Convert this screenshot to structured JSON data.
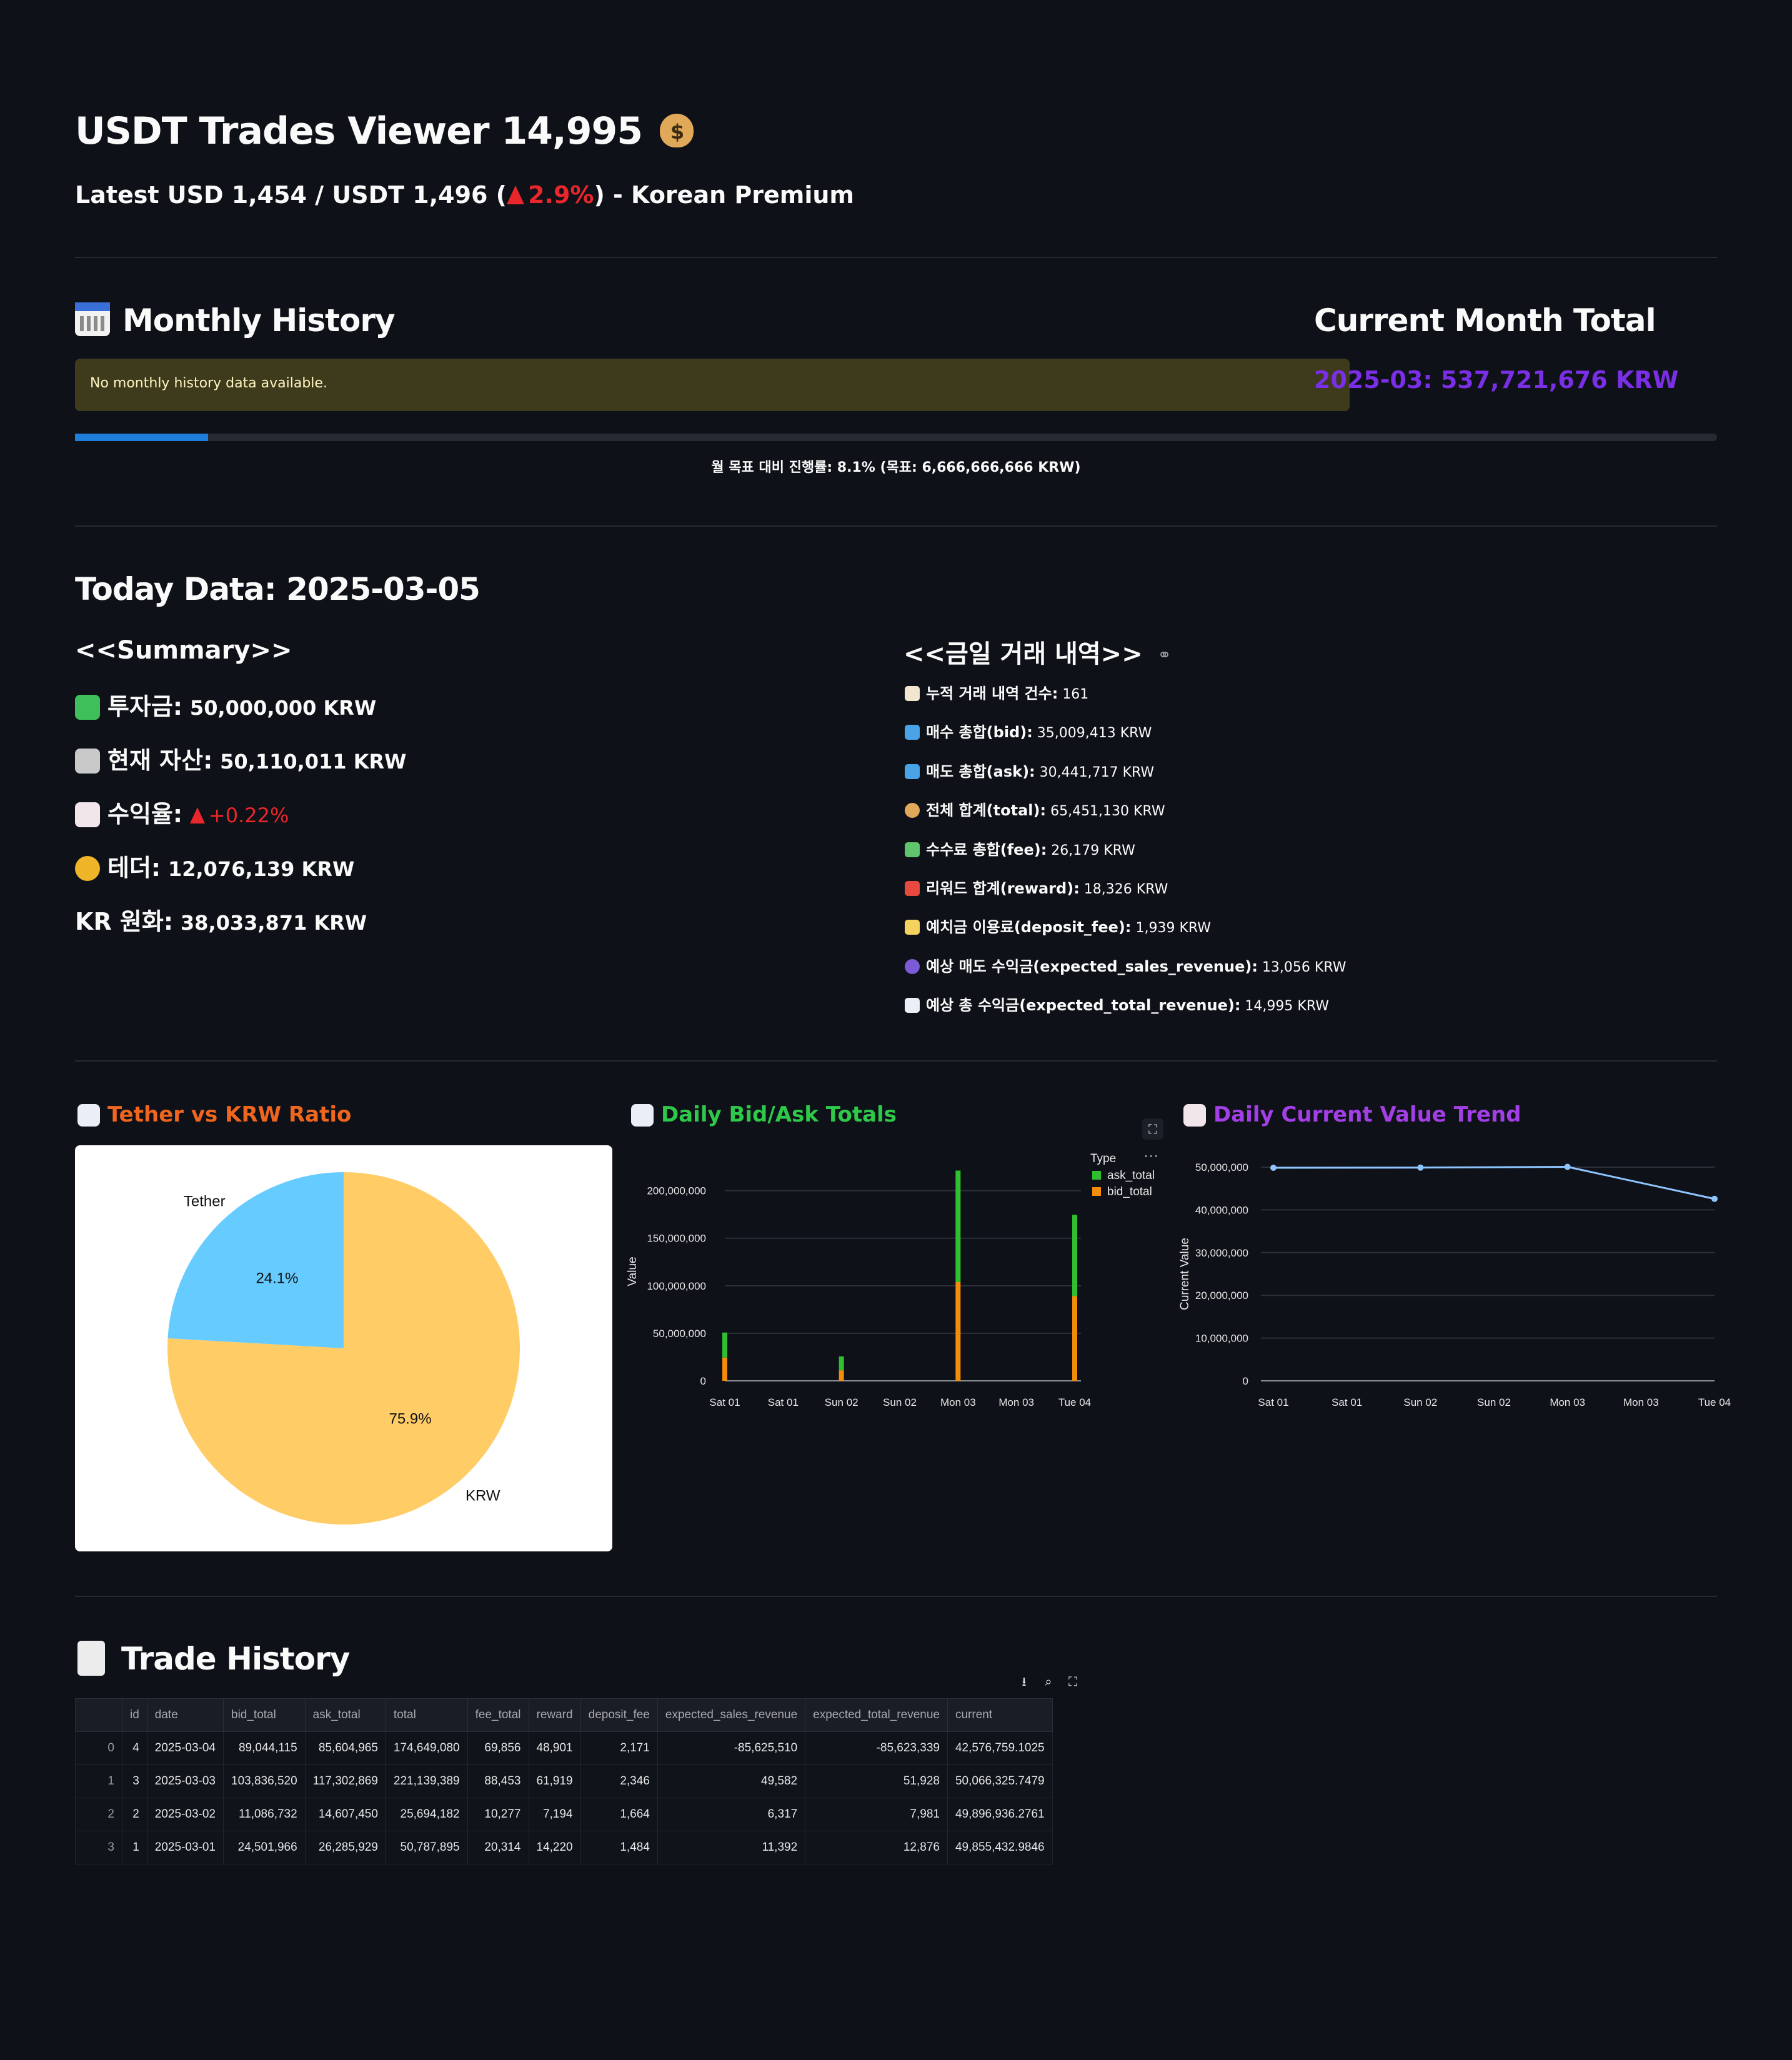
{
  "header": {
    "title": "USDT Trades Viewer 14,995",
    "subtitle_prefix": "Latest USD 1,454 / USDT 1,496 (",
    "subtitle_change": "2.9%",
    "subtitle_suffix": ") - Korean Premium"
  },
  "monthly": {
    "heading": "Monthly History",
    "notice": "No monthly history data available.",
    "current_total_heading": "Current Month Total",
    "current_total_value": "2025-03: 537,721,676 KRW",
    "progress_fraction": 0.081,
    "progress_caption": "월 목표 대비 진행률: 8.1% (목표: 6,666,666,666 KRW)"
  },
  "today": {
    "heading": "Today Data: 2025-03-05",
    "summary_heading": "<<Summary>>",
    "summary": [
      {
        "label": "투자금:",
        "value": "50,000,000 KRW",
        "icon": "money-icon"
      },
      {
        "label": "현재 자산:",
        "value": "50,110,011 KRW",
        "icon": "bank-icon"
      },
      {
        "label": "수익율:",
        "value": "+0.22%",
        "icon": "chart-down-icon"
      },
      {
        "label": "테더:",
        "value": "12,076,139 KRW",
        "icon": "coin-icon"
      },
      {
        "label": "KR 원화:",
        "value": "38,033,871 KRW",
        "icon": ""
      }
    ],
    "trades_heading": "<<금일 거래 내역>>",
    "trades": [
      {
        "label": "누적 거래 내역 건수:",
        "value": "161",
        "icon": "memo-icon"
      },
      {
        "label": "매수 총합(bid):",
        "value": "35,009,413 KRW",
        "icon": "inbox-icon"
      },
      {
        "label": "매도 총합(ask):",
        "value": "30,441,717 KRW",
        "icon": "outbox-icon"
      },
      {
        "label": "전체 합계(total):",
        "value": "65,451,130 KRW",
        "icon": "moneybag-icon"
      },
      {
        "label": "수수료 총합(fee):",
        "value": "26,179 KRW",
        "icon": "money-wings-icon"
      },
      {
        "label": "리워드 합계(reward):",
        "value": "18,326 KRW",
        "icon": "gift-icon"
      },
      {
        "label": "예치금 이용료(deposit_fee):",
        "value": "1,939 KRW",
        "icon": "label-icon"
      },
      {
        "label": "예상 매도 수익금(expected_sales_revenue):",
        "value": "13,056 KRW",
        "icon": "crystal-ball-icon"
      },
      {
        "label": "예상 총 수익금(expected_total_revenue):",
        "value": "14,995 KRW",
        "icon": "bar-chart-icon"
      }
    ]
  },
  "charts_titles": {
    "pie": "Tether vs KRW Ratio",
    "bar": "Daily Bid/Ask Totals",
    "line": "Daily Current Value Trend"
  },
  "colors": {
    "pie_tether": "#66ccff",
    "pie_krw": "#ffcc66",
    "ask": "#2fbf2f",
    "bid": "#f28c0a",
    "line": "#8ec5ff",
    "purple": "#7a2ee6",
    "orange_title": "#f0661f",
    "green_title": "#2fc94a",
    "violet_title": "#a23fe6"
  },
  "chart_data": [
    {
      "type": "pie",
      "labels": [
        "Tether",
        "KRW"
      ],
      "values": [
        24.1,
        75.9
      ],
      "value_labels": [
        "24.1%",
        "75.9%"
      ]
    },
    {
      "type": "bar",
      "stacked": true,
      "x": [
        "2025-03-01",
        "2025-03-02",
        "2025-03-03",
        "2025-03-04"
      ],
      "xtick_labels": [
        "Sat 01",
        "Sat 01",
        "Sun 02",
        "Sun 02",
        "Mon 03",
        "Mon 03",
        "Tue 04"
      ],
      "ylabel": "Value",
      "ytick_labels": [
        "0",
        "50,000,000",
        "100,000,000",
        "150,000,000",
        "200,000,000"
      ],
      "ylim": [
        0,
        230000000
      ],
      "legend_title": "Type",
      "legend_position": "top-right",
      "series": [
        {
          "name": "bid_total",
          "values": [
            24501966,
            11086732,
            103836520,
            89044115
          ]
        },
        {
          "name": "ask_total",
          "values": [
            26285929,
            14607450,
            117302869,
            85604965
          ]
        }
      ]
    },
    {
      "type": "line",
      "x": [
        "2025-03-01",
        "2025-03-02",
        "2025-03-03",
        "2025-03-04"
      ],
      "xtick_labels": [
        "Sat 01",
        "Sat 01",
        "Sun 02",
        "Sun 02",
        "Mon 03",
        "Mon 03",
        "Tue 04"
      ],
      "ylabel": "Current Value",
      "ytick_labels": [
        "0",
        "10,000,000",
        "20,000,000",
        "30,000,000",
        "40,000,000",
        "50,000,000"
      ],
      "ylim": [
        0,
        50000000
      ],
      "series": [
        {
          "name": "current",
          "values": [
            49855432.9846,
            49896936.2761,
            50066325.7479,
            42576759.1025
          ]
        }
      ]
    }
  ],
  "trade_history": {
    "heading": "Trade History",
    "columns": [
      "",
      "id",
      "date",
      "bid_total",
      "ask_total",
      "total",
      "fee_total",
      "reward",
      "deposit_fee",
      "expected_sales_revenue",
      "expected_total_revenue",
      "current"
    ],
    "rows": [
      [
        "0",
        "4",
        "2025-03-04",
        "89,044,115",
        "85,604,965",
        "174,649,080",
        "69,856",
        "48,901",
        "2,171",
        "-85,625,510",
        "-85,623,339",
        "42,576,759.1025"
      ],
      [
        "1",
        "3",
        "2025-03-03",
        "103,836,520",
        "117,302,869",
        "221,139,389",
        "88,453",
        "61,919",
        "2,346",
        "49,582",
        "51,928",
        "50,066,325.7479"
      ],
      [
        "2",
        "2",
        "2025-03-02",
        "11,086,732",
        "14,607,450",
        "25,694,182",
        "10,277",
        "7,194",
        "1,664",
        "6,317",
        "7,981",
        "49,896,936.2761"
      ],
      [
        "3",
        "1",
        "2025-03-01",
        "24,501,966",
        "26,285,929",
        "50,787,895",
        "20,314",
        "14,220",
        "1,484",
        "11,392",
        "12,876",
        "49,855,432.9846"
      ]
    ]
  }
}
